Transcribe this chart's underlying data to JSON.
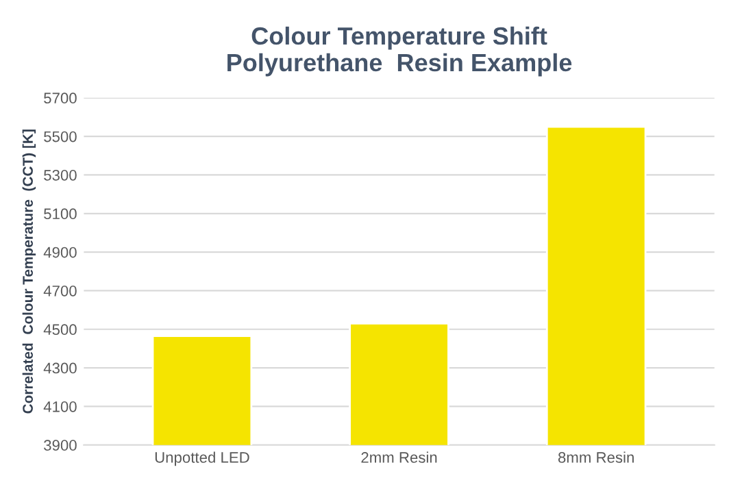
{
  "chart_data": {
    "type": "bar",
    "title": "Colour Temperature Shift\nPolyurethane  Resin Example",
    "ylabel": "Correlated  Colour Temperature  (CCT) [K]",
    "categories": [
      "Unpotted LED",
      "2mm Resin",
      "8mm Resin"
    ],
    "values": [
      4465,
      4530,
      5550
    ],
    "color": "#f5e400",
    "ylim": [
      3900,
      5700
    ],
    "yticks": [
      3900,
      4100,
      4300,
      4500,
      4700,
      4900,
      5100,
      5300,
      5500,
      5700
    ],
    "grid": "y"
  }
}
